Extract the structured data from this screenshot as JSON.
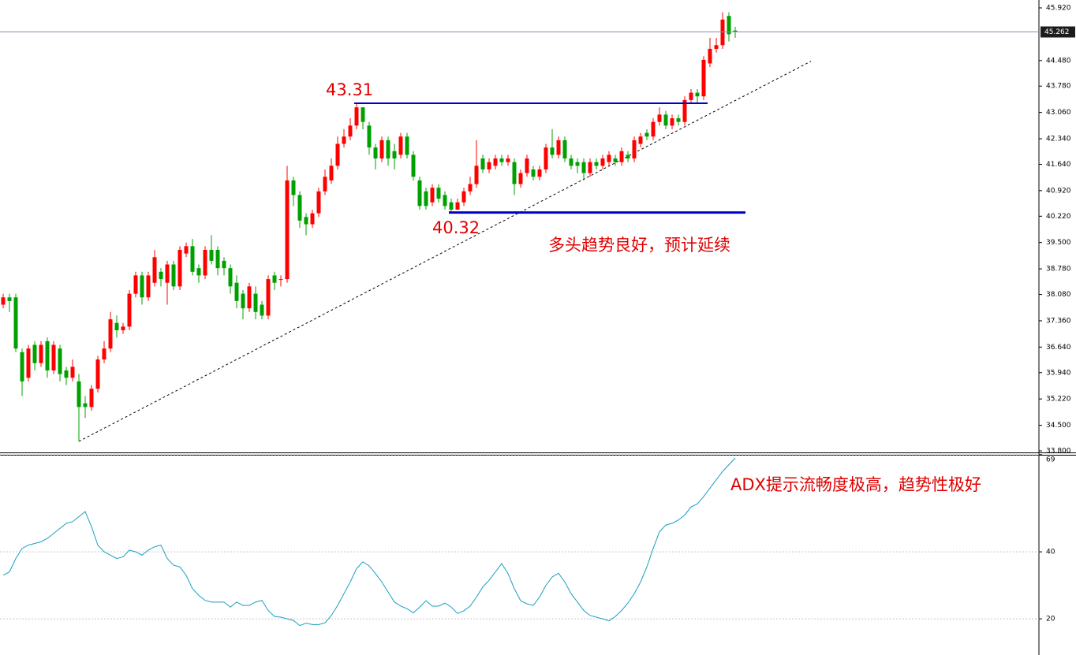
{
  "chart_data": [
    {
      "type": "candlestick",
      "open": [
        37.8,
        38.0,
        38.0,
        36.5,
        35.8,
        36.7,
        36.2,
        36.8,
        36.0,
        36.6,
        36.0,
        35.8,
        35.7,
        35.1,
        35.0,
        35.5,
        36.3,
        36.6,
        37.3,
        37.1,
        37.2,
        38.1,
        38.6,
        38.0,
        38.4,
        38.7,
        38.4,
        38.9,
        38.3,
        39.2,
        39.4,
        38.8,
        38.6,
        39.3,
        39.3,
        39.0,
        38.8,
        38.4,
        38.1,
        37.7,
        38.1,
        37.8,
        37.5,
        38.6,
        38.5,
        38.5,
        41.2,
        40.8,
        40.2,
        40.0,
        40.3,
        40.9,
        41.2,
        41.6,
        42.2,
        42.4,
        42.7,
        43.2,
        42.7,
        42.1,
        41.8,
        42.3,
        42.0,
        41.9,
        42.4,
        41.9,
        41.2,
        40.9,
        40.6,
        41.0,
        40.8,
        40.6,
        40.4,
        40.6,
        40.9,
        41.1,
        41.8,
        41.5,
        41.6,
        41.8,
        41.7,
        41.7,
        41.1,
        41.4,
        41.5,
        41.3,
        41.5,
        42.1,
        41.9,
        42.3,
        41.8,
        41.7,
        41.7,
        41.4,
        41.7,
        41.6,
        41.7,
        41.8,
        41.7,
        41.9,
        41.8,
        42.2,
        42.5,
        42.4,
        42.8,
        43.0,
        42.7,
        42.9,
        42.8,
        43.4,
        43.6,
        43.5,
        44.4,
        44.8,
        44.9,
        45.7,
        45.3
      ],
      "high": [
        38.1,
        38.1,
        38.1,
        36.6,
        36.7,
        36.8,
        36.8,
        36.9,
        36.8,
        36.7,
        36.1,
        36.3,
        35.9,
        35.3,
        35.6,
        36.4,
        36.8,
        37.6,
        37.5,
        37.3,
        38.2,
        38.7,
        38.7,
        38.7,
        39.3,
        38.8,
        39.0,
        39.0,
        39.4,
        39.5,
        39.6,
        38.9,
        39.4,
        39.7,
        39.4,
        39.1,
        38.9,
        38.6,
        38.2,
        38.4,
        38.3,
        37.9,
        38.6,
        38.7,
        38.6,
        41.6,
        41.3,
        40.9,
        40.3,
        40.4,
        41.0,
        41.5,
        41.8,
        42.4,
        42.6,
        42.9,
        43.31,
        43.2,
        42.8,
        42.2,
        42.4,
        42.4,
        42.2,
        42.5,
        42.5,
        42.0,
        41.3,
        41.0,
        41.1,
        41.1,
        40.9,
        40.7,
        40.7,
        41.0,
        41.3,
        42.3,
        41.9,
        41.8,
        41.9,
        41.9,
        41.9,
        41.8,
        41.5,
        41.9,
        41.6,
        41.6,
        42.2,
        42.6,
        42.4,
        42.4,
        41.9,
        41.8,
        41.8,
        41.8,
        41.8,
        41.9,
        42.0,
        41.9,
        42.1,
        42.0,
        42.4,
        42.5,
        42.6,
        42.9,
        43.2,
        43.1,
        43.0,
        43.0,
        43.5,
        43.7,
        43.7,
        44.6,
        45.1,
        45.1,
        45.8,
        45.8,
        45.4
      ],
      "low": [
        37.7,
        37.6,
        36.5,
        35.3,
        35.7,
        36.0,
        36.1,
        35.8,
        35.9,
        35.7,
        35.6,
        35.7,
        34.06,
        34.7,
        34.9,
        35.4,
        36.2,
        36.5,
        36.9,
        37.0,
        37.1,
        38.0,
        37.8,
        37.9,
        38.3,
        38.3,
        37.8,
        38.2,
        38.2,
        39.1,
        38.6,
        38.4,
        38.5,
        38.9,
        38.6,
        38.6,
        38.1,
        37.7,
        37.4,
        37.6,
        37.4,
        37.4,
        37.4,
        38.2,
        38.3,
        38.4,
        40.5,
        39.9,
        39.7,
        39.9,
        40.2,
        40.8,
        41.1,
        41.5,
        42.1,
        42.3,
        42.6,
        42.6,
        41.9,
        41.5,
        41.7,
        41.6,
        41.5,
        41.8,
        41.8,
        41.2,
        40.4,
        40.4,
        40.5,
        40.6,
        40.4,
        40.32,
        40.4,
        40.5,
        40.8,
        41.0,
        41.4,
        41.4,
        41.5,
        41.6,
        41.6,
        40.8,
        41.0,
        41.3,
        41.2,
        41.2,
        41.4,
        41.8,
        41.8,
        41.7,
        41.5,
        41.4,
        41.2,
        41.3,
        41.5,
        41.5,
        41.6,
        41.6,
        41.6,
        41.7,
        41.7,
        42.1,
        42.3,
        42.3,
        42.7,
        42.6,
        42.6,
        42.7,
        42.7,
        43.3,
        43.3,
        43.4,
        44.3,
        44.7,
        44.8,
        45.0,
        45.1
      ],
      "close": [
        38.0,
        37.9,
        36.6,
        35.7,
        36.6,
        36.2,
        36.7,
        36.0,
        36.7,
        35.9,
        35.8,
        36.1,
        35.0,
        35.0,
        35.5,
        36.3,
        36.6,
        37.4,
        37.1,
        37.2,
        38.1,
        38.6,
        38.0,
        38.6,
        39.1,
        38.5,
        38.9,
        38.3,
        39.3,
        39.4,
        38.7,
        38.6,
        39.3,
        39.0,
        38.8,
        38.8,
        38.3,
        37.9,
        37.7,
        38.3,
        37.6,
        37.5,
        38.5,
        38.4,
        38.5,
        41.2,
        40.8,
        40.1,
        40.0,
        40.3,
        40.9,
        41.3,
        41.6,
        42.2,
        42.4,
        42.7,
        43.2,
        42.8,
        42.1,
        41.8,
        42.3,
        41.8,
        41.8,
        42.4,
        41.9,
        41.3,
        40.5,
        40.5,
        41.0,
        40.7,
        40.5,
        40.4,
        40.6,
        40.9,
        41.1,
        41.6,
        41.5,
        41.7,
        41.8,
        41.7,
        41.8,
        41.1,
        41.4,
        41.8,
        41.3,
        41.5,
        42.1,
        41.9,
        42.3,
        41.8,
        41.6,
        41.6,
        41.4,
        41.7,
        41.6,
        41.8,
        41.9,
        41.7,
        42.0,
        41.8,
        42.3,
        42.4,
        42.4,
        42.8,
        43.0,
        42.7,
        42.9,
        42.8,
        43.4,
        43.6,
        43.5,
        44.5,
        44.8,
        44.9,
        45.6,
        45.2,
        45.262
      ],
      "up_color": "#ff0000",
      "down_color": "#00a000",
      "ylim": [
        33.757,
        46.136
      ],
      "yticks": [
        {
          "value": 33.8,
          "label": "33.800"
        },
        {
          "value": 34.5,
          "label": "34.500"
        },
        {
          "value": 35.22,
          "label": "35.220"
        },
        {
          "value": 35.94,
          "label": "35.940"
        },
        {
          "value": 36.64,
          "label": "36.640"
        },
        {
          "value": 37.36,
          "label": "37.360"
        },
        {
          "value": 38.08,
          "label": "38.080"
        },
        {
          "value": 38.78,
          "label": "38.780"
        },
        {
          "value": 39.5,
          "label": "39.500"
        },
        {
          "value": 40.22,
          "label": "40.220"
        },
        {
          "value": 40.92,
          "label": "40.920"
        },
        {
          "value": 41.64,
          "label": "41.640"
        },
        {
          "value": 42.34,
          "label": "42.340"
        },
        {
          "value": 43.06,
          "label": "43.060"
        },
        {
          "value": 43.78,
          "label": "43.780"
        },
        {
          "value": 44.48,
          "label": "44.480"
        },
        {
          "value": 45.92,
          "label": "45.920"
        }
      ],
      "last_price": 45.262,
      "levels": [
        43.31,
        40.32
      ],
      "level_color": "#0000cc",
      "trendline": {
        "x": [
          12,
          128
        ],
        "values": [
          34.06,
          44.46
        ]
      },
      "annotation": "多头趋势良好，预计延续"
    },
    {
      "type": "line",
      "values": [
        33,
        34,
        38,
        41,
        42,
        42.5,
        43,
        44,
        45.5,
        47,
        48.5,
        49,
        50.5,
        52,
        47.5,
        42,
        40,
        39,
        38,
        38.5,
        40.5,
        40,
        39,
        40.5,
        41.5,
        42,
        38,
        36,
        35.5,
        33,
        29,
        27,
        25.5,
        25,
        25,
        25,
        23.5,
        25,
        24,
        24,
        25,
        25.5,
        22.5,
        20.7,
        20.5,
        20,
        19.5,
        18,
        18.7,
        18.3,
        18.3,
        18.8,
        21,
        24,
        27.5,
        31,
        35,
        37,
        35.8,
        33.5,
        31,
        28,
        25,
        23.8,
        23,
        21.8,
        23.5,
        25.4,
        23.8,
        23.8,
        24.7,
        23.5,
        21.6,
        22.4,
        23.8,
        26.5,
        29.5,
        31.5,
        34,
        36.5,
        33.5,
        29,
        25.4,
        24.5,
        24,
        26.5,
        30,
        32.5,
        33.6,
        31,
        27.5,
        25,
        22.5,
        21,
        20.5,
        20,
        19.4,
        20.7,
        22.5,
        24.7,
        27.5,
        31,
        35.5,
        41,
        46,
        48,
        48.5,
        49.5,
        51,
        53.4,
        54.3,
        56.5,
        59,
        61.5,
        64,
        66,
        68
      ],
      "color": "#1a9fc0",
      "ylim": [
        9.2,
        69.2
      ],
      "yticks": [
        20,
        40,
        69
      ],
      "grid": true,
      "annotation": "ADX提示流畅度极高，趋势性极好"
    }
  ]
}
